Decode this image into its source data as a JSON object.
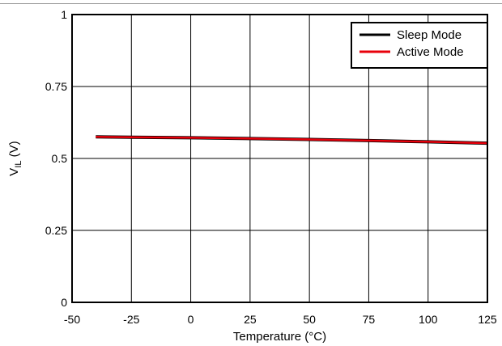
{
  "chart_data": {
    "type": "line",
    "title": "",
    "xlabel": "Temperature (°C)",
    "ylabel": {
      "main": "V",
      "subscript": "IL",
      "unit": " (V)"
    },
    "xlim": [
      -50,
      125
    ],
    "ylim": [
      0,
      1
    ],
    "x_ticks": [
      -50,
      -25,
      0,
      25,
      50,
      75,
      100,
      125
    ],
    "y_ticks": [
      0,
      0.25,
      0.5,
      0.75,
      1
    ],
    "y_tick_labels": [
      "0",
      "0.25",
      "0.5",
      "0.75",
      "1"
    ],
    "grid": true,
    "legend_position": "top-right",
    "series": [
      {
        "name": "Sleep Mode",
        "color": "#000000",
        "x": [
          -40,
          -25,
          0,
          25,
          50,
          75,
          100,
          125
        ],
        "y": [
          0.575,
          0.574,
          0.572,
          0.569,
          0.566,
          0.562,
          0.558,
          0.553
        ]
      },
      {
        "name": "Active Mode",
        "color": "#e8000b",
        "x": [
          -40,
          -25,
          0,
          25,
          50,
          75,
          100,
          125
        ],
        "y": [
          0.575,
          0.574,
          0.572,
          0.569,
          0.566,
          0.562,
          0.558,
          0.553
        ]
      }
    ]
  }
}
